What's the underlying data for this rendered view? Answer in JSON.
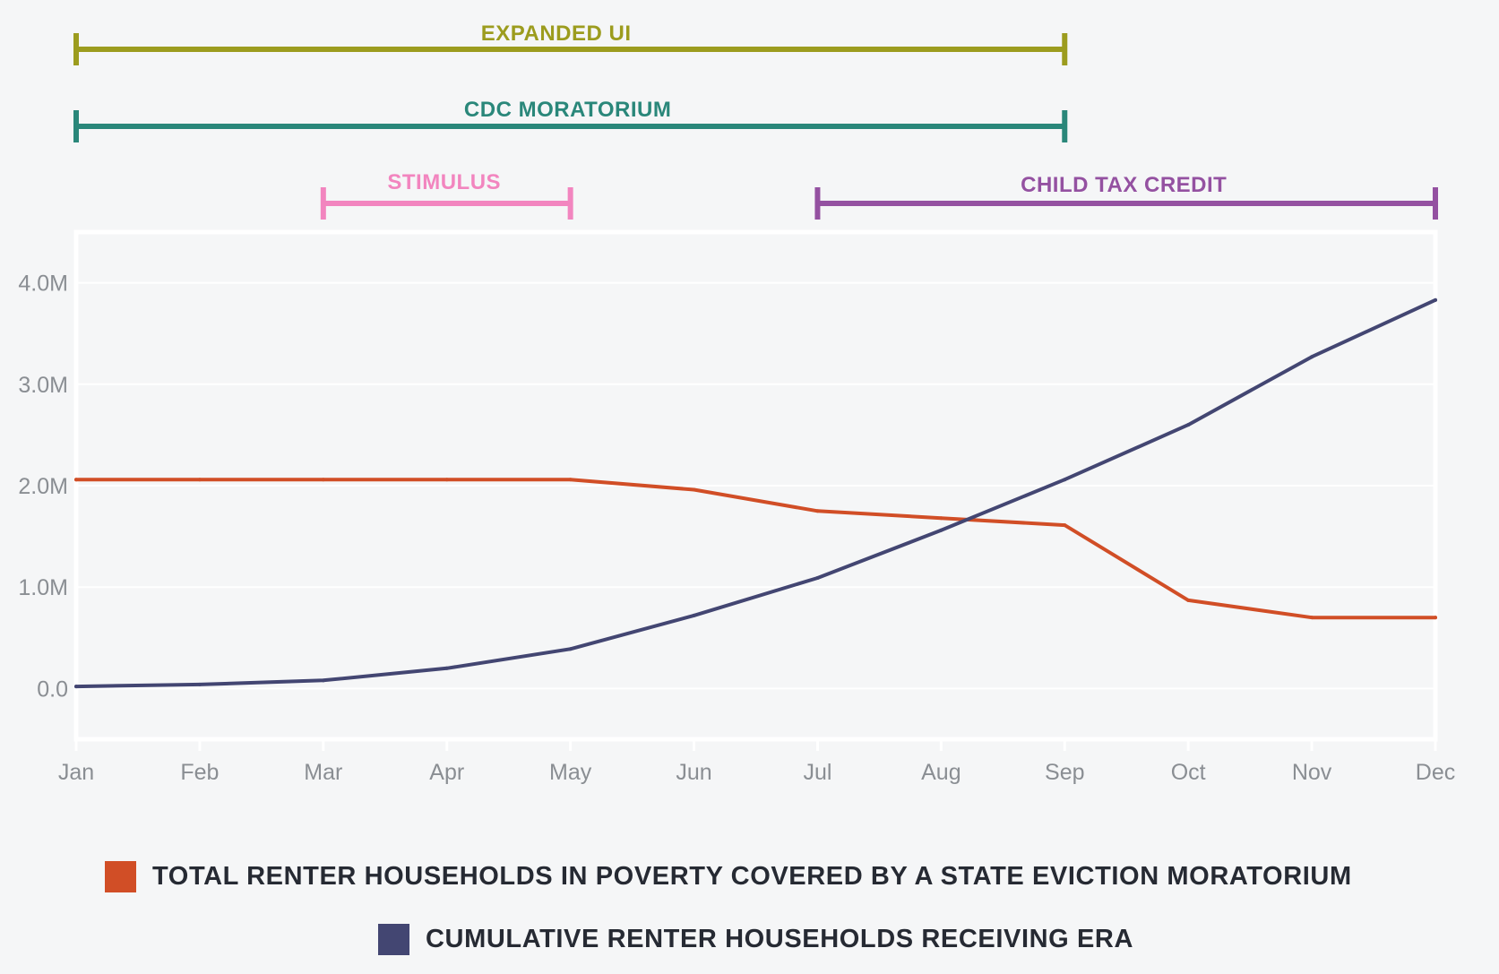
{
  "chart_data": {
    "type": "line",
    "categories": [
      "Jan",
      "Feb",
      "Mar",
      "Apr",
      "May",
      "Jun",
      "Jul",
      "Aug",
      "Sep",
      "Oct",
      "Nov",
      "Dec"
    ],
    "y_tick_labels": [
      "0.0",
      "1.0M",
      "2.0M",
      "3.0M",
      "4.0M"
    ],
    "y_ticks": [
      0,
      1000000,
      2000000,
      3000000,
      4000000
    ],
    "ylim": [
      -500000,
      4500000
    ],
    "grid": true,
    "legend_position": "bottom",
    "series": [
      {
        "name": "TOTAL RENTER HOUSEHOLDS IN POVERTY COVERED BY A STATE EVICTION MORATORIUM",
        "color": "#d14e26",
        "values": [
          2060000,
          2060000,
          2060000,
          2060000,
          2060000,
          1960000,
          1750000,
          1680000,
          1610000,
          870000,
          700000,
          700000
        ]
      },
      {
        "name": "CUMULATIVE RENTER HOUSEHOLDS RECEIVING ERA",
        "color": "#434672",
        "values": [
          20000,
          40000,
          80000,
          200000,
          390000,
          720000,
          1090000,
          1560000,
          2060000,
          2600000,
          3270000,
          3830000
        ]
      }
    ],
    "annotations": [
      {
        "label": "EXPANDED UI",
        "start": "Jan",
        "end": "Sep",
        "color": "#9c9c1e"
      },
      {
        "label": "CDC MORATORIUM",
        "start": "Jan",
        "end": "Sep",
        "color": "#2a877a"
      },
      {
        "label": "STIMULUS",
        "start": "Mar",
        "end": "May",
        "color": "#f285bf"
      },
      {
        "label": "CHILD TAX CREDIT",
        "start": "Jul",
        "end": "Dec",
        "color": "#9451a1"
      }
    ],
    "colors": {
      "background": "#f5f6f7",
      "plot_border": "#ffffff",
      "gridline": "#ffffff",
      "tick_text": "#8a8e93",
      "legend_text": "#262a33"
    }
  }
}
